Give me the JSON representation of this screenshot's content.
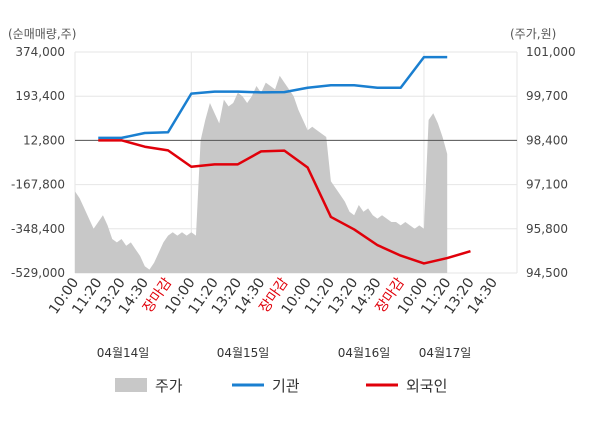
{
  "chart_data": {
    "type": "line",
    "left_axis_unit": "(순매매량,주)",
    "right_axis_unit": "(주가,원)",
    "left_ticks": [
      "374,000",
      "193,400",
      "12,800",
      "-167,800",
      "-348,400",
      "-529,000"
    ],
    "left_tick_values": [
      374000,
      193400,
      12800,
      -167800,
      -348400,
      -529000
    ],
    "right_ticks": [
      "101,000",
      "99,700",
      "98,400",
      "97,100",
      "95,800",
      "94,500"
    ],
    "right_tick_values": [
      101000,
      99700,
      98400,
      97100,
      95800,
      94500
    ],
    "left_ylim": [
      -529000,
      374000
    ],
    "right_ylim": [
      94500,
      101000
    ],
    "x_labels": [
      "10:00",
      "11:20",
      "13:20",
      "14:30",
      "장마감",
      "10:00",
      "11:20",
      "13:20",
      "14:30",
      "장마감",
      "10:00",
      "11:20",
      "13:20",
      "14:30",
      "장마감",
      "10:00",
      "11:20",
      "13:20",
      "14:30"
    ],
    "close_label": "장마감",
    "dates": [
      "04월14일",
      "04월15일",
      "04월16일",
      "04월17일"
    ],
    "grid": true,
    "legend_position": "bottom",
    "colors": {
      "price": "#c8c8c8",
      "institution": "#1a7fd0",
      "foreign": "#e0000a",
      "close_label": "#e0000a",
      "grid": "#e6e6e6",
      "baseline": "#555555"
    },
    "series": [
      {
        "name": "주가",
        "axis": "right",
        "style": "area",
        "points": [
          [
            0,
            96.9
          ],
          [
            0.2,
            96.7
          ],
          [
            0.4,
            96.4
          ],
          [
            0.6,
            96.1
          ],
          [
            0.8,
            95.8
          ],
          [
            1.0,
            96.0
          ],
          [
            1.2,
            96.2
          ],
          [
            1.4,
            95.9
          ],
          [
            1.6,
            95.5
          ],
          [
            1.8,
            95.4
          ],
          [
            2.0,
            95.5
          ],
          [
            2.2,
            95.3
          ],
          [
            2.4,
            95.4
          ],
          [
            2.6,
            95.2
          ],
          [
            2.8,
            95.0
          ],
          [
            3.0,
            94.7
          ],
          [
            3.2,
            94.6
          ],
          [
            3.4,
            94.8
          ],
          [
            3.6,
            95.1
          ],
          [
            3.8,
            95.4
          ],
          [
            4.0,
            95.6
          ],
          [
            4.2,
            95.7
          ],
          [
            4.4,
            95.6
          ],
          [
            4.6,
            95.7
          ],
          [
            4.8,
            95.6
          ],
          [
            5.0,
            95.7
          ],
          [
            5.2,
            95.6
          ],
          [
            5.4,
            98.4
          ],
          [
            5.6,
            99.0
          ],
          [
            5.8,
            99.5
          ],
          [
            6.0,
            99.2
          ],
          [
            6.2,
            98.9
          ],
          [
            6.4,
            99.6
          ],
          [
            6.6,
            99.4
          ],
          [
            6.8,
            99.5
          ],
          [
            7.0,
            99.8
          ],
          [
            7.2,
            99.7
          ],
          [
            7.4,
            99.5
          ],
          [
            7.6,
            99.7
          ],
          [
            7.8,
            100.0
          ],
          [
            8.0,
            99.8
          ],
          [
            8.2,
            100.1
          ],
          [
            8.4,
            100.0
          ],
          [
            8.6,
            99.9
          ],
          [
            8.8,
            100.3
          ],
          [
            9.0,
            100.1
          ],
          [
            9.2,
            99.9
          ],
          [
            9.4,
            99.7
          ],
          [
            9.6,
            99.3
          ],
          [
            9.8,
            99.0
          ],
          [
            10.0,
            98.7
          ],
          [
            10.2,
            98.8
          ],
          [
            10.4,
            98.7
          ],
          [
            10.6,
            98.6
          ],
          [
            10.8,
            98.5
          ],
          [
            11.0,
            97.2
          ],
          [
            11.2,
            97.0
          ],
          [
            11.4,
            96.8
          ],
          [
            11.6,
            96.6
          ],
          [
            11.8,
            96.3
          ],
          [
            12.0,
            96.2
          ],
          [
            12.2,
            96.5
          ],
          [
            12.4,
            96.3
          ],
          [
            12.6,
            96.4
          ],
          [
            12.8,
            96.2
          ],
          [
            13.0,
            96.1
          ],
          [
            13.2,
            96.2
          ],
          [
            13.4,
            96.1
          ],
          [
            13.6,
            96.0
          ],
          [
            13.8,
            96.0
          ],
          [
            14.0,
            95.9
          ],
          [
            14.2,
            96.0
          ],
          [
            14.4,
            95.9
          ],
          [
            14.6,
            95.8
          ],
          [
            14.8,
            95.9
          ],
          [
            15.0,
            95.8
          ],
          [
            15.2,
            99.0
          ],
          [
            15.4,
            99.2
          ],
          [
            15.6,
            98.9
          ],
          [
            15.8,
            98.5
          ],
          [
            16.0,
            98.0
          ]
        ]
      },
      {
        "name": "기관",
        "axis": "left",
        "style": "line",
        "points": [
          [
            1.0,
            23000
          ],
          [
            2.0,
            23000
          ],
          [
            3.0,
            43000
          ],
          [
            4.0,
            46000
          ],
          [
            5.0,
            204000
          ],
          [
            6.0,
            212000
          ],
          [
            7.0,
            212000
          ],
          [
            8.0,
            209000
          ],
          [
            9.0,
            210000
          ],
          [
            10.0,
            228000
          ],
          [
            11.0,
            238000
          ],
          [
            12.0,
            238000
          ],
          [
            13.0,
            228000
          ],
          [
            14.0,
            228000
          ],
          [
            15.0,
            353000
          ],
          [
            16.0,
            353000
          ]
        ]
      },
      {
        "name": "외국인",
        "axis": "left",
        "style": "line",
        "points": [
          [
            1.0,
            13000
          ],
          [
            2.0,
            13000
          ],
          [
            3.0,
            -13000
          ],
          [
            4.0,
            -28000
          ],
          [
            5.0,
            -95000
          ],
          [
            6.0,
            -85000
          ],
          [
            7.0,
            -85000
          ],
          [
            8.0,
            -32000
          ],
          [
            9.0,
            -29000
          ],
          [
            10.0,
            -98000
          ],
          [
            11.0,
            -300000
          ],
          [
            12.0,
            -351000
          ],
          [
            13.0,
            -415000
          ],
          [
            14.0,
            -458000
          ],
          [
            15.0,
            -490000
          ],
          [
            16.0,
            -468000
          ],
          [
            17.0,
            -440000
          ]
        ]
      }
    ]
  }
}
